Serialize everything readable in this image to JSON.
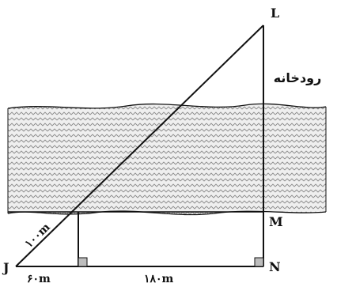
{
  "figure": {
    "points": {
      "L": "L",
      "M": "M",
      "N": "N",
      "J": "J"
    },
    "measures": {
      "hyp": "۱۰۰m",
      "jk": "۶۰m",
      "kn": "۱۸۰m"
    },
    "river_label": "رودخانه"
  }
}
